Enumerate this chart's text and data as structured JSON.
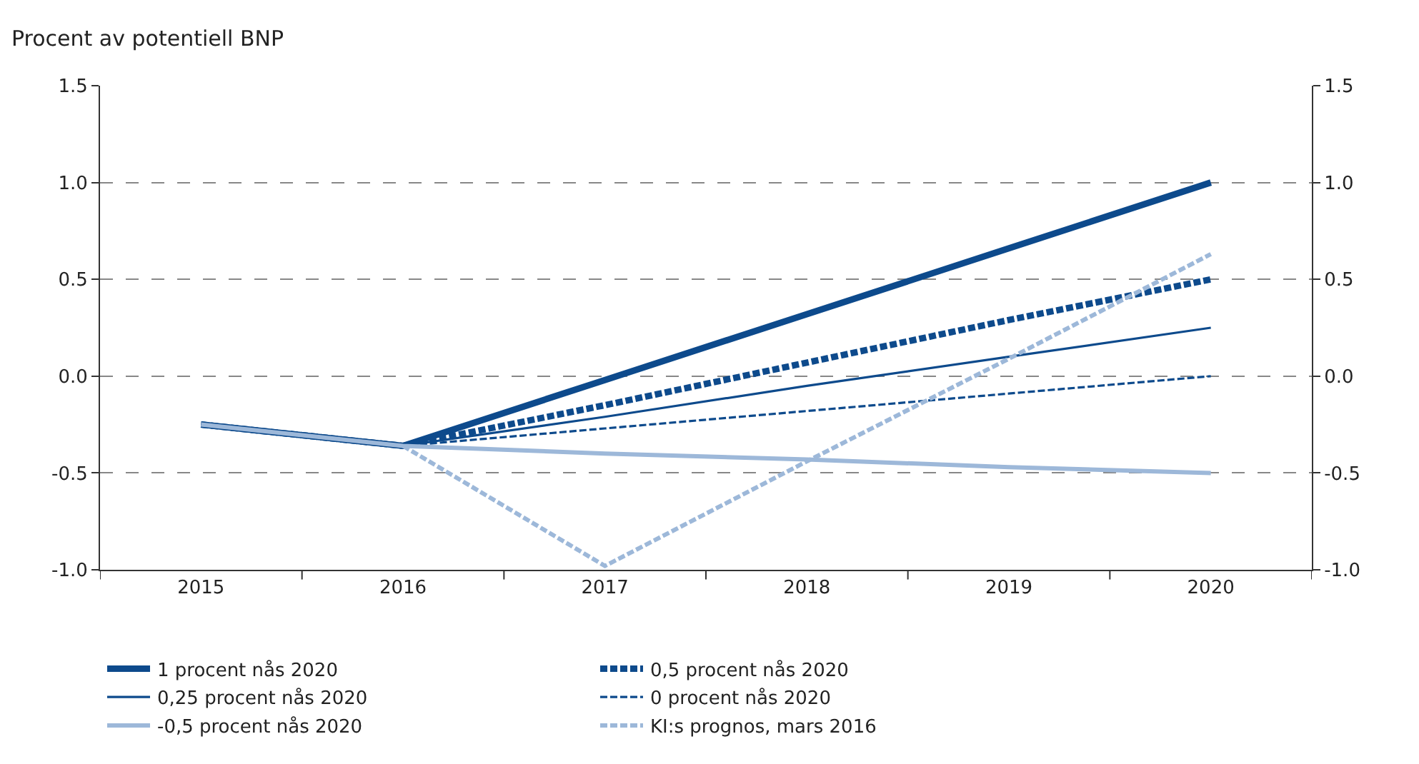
{
  "chart_data": {
    "type": "line",
    "ylabel": "Procent av potentiell BNP",
    "categories": [
      "2015",
      "2016",
      "2017",
      "2018",
      "2019",
      "2020"
    ],
    "series": [
      {
        "name": "1 procent nås 2020",
        "color": "#0d4a8c",
        "line_style": "solid",
        "values": [
          -0.25,
          -0.36,
          -0.02,
          0.32,
          0.66,
          1.0
        ]
      },
      {
        "name": "0,5 procent nås 2020",
        "color": "#0d4a8c",
        "line_style": "dashed",
        "values": [
          -0.25,
          -0.36,
          -0.15,
          0.07,
          0.29,
          0.5
        ]
      },
      {
        "name": "0,25 procent nås 2020",
        "color": "#0d4a8c",
        "line_style": "solid",
        "values": [
          -0.25,
          -0.36,
          -0.21,
          -0.05,
          0.1,
          0.25
        ]
      },
      {
        "name": "0 procent nås 2020",
        "color": "#0d4a8c",
        "line_style": "dashed",
        "values": [
          -0.25,
          -0.36,
          -0.27,
          -0.18,
          -0.09,
          0.0
        ]
      },
      {
        "name": "-0,5 procent nås 2020",
        "color": "#9db8d9",
        "line_style": "solid",
        "values": [
          -0.25,
          -0.36,
          -0.4,
          -0.43,
          -0.47,
          -0.5
        ]
      },
      {
        "name": "KI:s prognos, mars 2016",
        "color": "#9db8d9",
        "line_style": "dashed",
        "values": [
          null,
          -0.36,
          -0.98,
          -0.44,
          0.09,
          0.63
        ]
      }
    ],
    "ylim": [
      -1.0,
      1.5
    ],
    "yticks": [
      {
        "value": -1.0,
        "label": "-1.0"
      },
      {
        "value": -0.5,
        "label": "-0.5"
      },
      {
        "value": 0,
        "label": "0.0"
      },
      {
        "value": 0.5,
        "label": "0.5"
      },
      {
        "value": 1.0,
        "label": "1.0"
      },
      {
        "value": 1.5,
        "label": "1.5"
      }
    ],
    "y2lim": [
      -1.0,
      1.5
    ],
    "y2ticks": [
      {
        "value": -1.0,
        "label": "-1.0"
      },
      {
        "value": -0.5,
        "label": "-0.5"
      },
      {
        "value": 0,
        "label": "0.0"
      },
      {
        "value": 0.5,
        "label": "0.5"
      },
      {
        "value": 1.0,
        "label": "1.0"
      },
      {
        "value": 1.5,
        "label": "1.5"
      }
    ],
    "grid": "y",
    "legend": "bottom",
    "marker": "none"
  }
}
